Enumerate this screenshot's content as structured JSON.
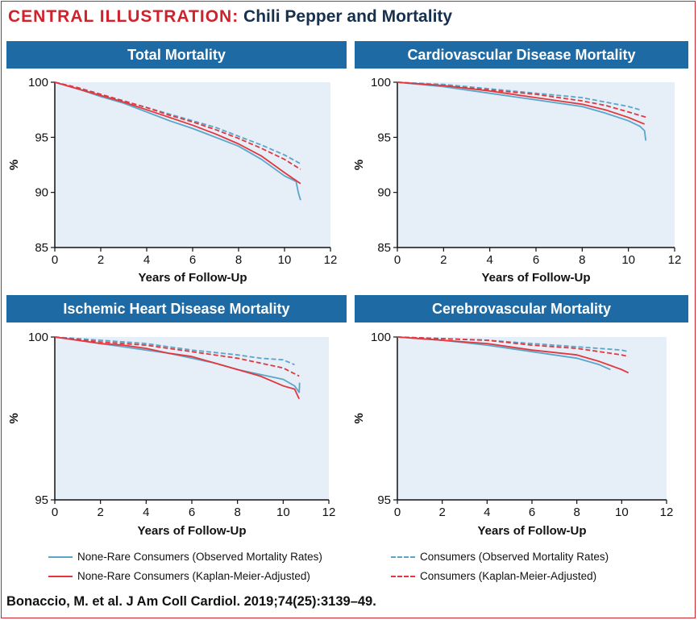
{
  "header": {
    "lead": "CENTRAL ILLUSTRATION:",
    "rest": "Chili Pepper and Mortality"
  },
  "colors": {
    "blue": "#5aa6c8",
    "red": "#e3373d",
    "band": "#1d6aa5",
    "plot_bg": "#e6eef8",
    "accent": "#d0222b"
  },
  "chart_data": [
    {
      "type": "line",
      "title": "Total Mortality",
      "xlabel": "Years of Follow-Up",
      "ylabel": "%",
      "xlim": [
        0,
        12
      ],
      "ylim": [
        85,
        100
      ],
      "xticks": [
        0,
        2,
        4,
        6,
        8,
        10,
        12
      ],
      "yticks": [
        85,
        90,
        95,
        100
      ],
      "ytick_labels": [
        "85",
        "90",
        "95",
        "100"
      ],
      "xtick_labels": [
        "0",
        "2",
        "4",
        "6",
        "8",
        "10",
        "12"
      ],
      "series": [
        {
          "name": "None-Rare Consumers (Observed Mortality Rates)",
          "style": "blue-solid",
          "x": [
            0,
            1,
            2,
            3,
            4,
            5,
            6,
            7,
            8,
            9,
            10,
            10.5,
            10.6,
            10.7
          ],
          "y": [
            100,
            99.4,
            98.7,
            98.1,
            97.3,
            96.5,
            95.8,
            95.0,
            94.2,
            93.0,
            91.5,
            91.0,
            90.0,
            89.3
          ]
        },
        {
          "name": "None-Rare Consumers (Kaplan-Meier-Adjusted)",
          "style": "red-solid",
          "x": [
            0,
            1,
            2,
            3,
            4,
            5,
            6,
            7,
            8,
            9,
            10,
            10.7
          ],
          "y": [
            100,
            99.4,
            98.8,
            98.2,
            97.5,
            96.8,
            96.1,
            95.3,
            94.4,
            93.3,
            91.8,
            90.8
          ]
        },
        {
          "name": "Consumers (Observed Mortality Rates)",
          "style": "blue-dashed",
          "x": [
            0,
            1,
            2,
            3,
            4,
            5,
            6,
            7,
            8,
            9,
            10,
            10.7
          ],
          "y": [
            100,
            99.5,
            98.9,
            98.3,
            97.7,
            97.1,
            96.5,
            95.9,
            95.1,
            94.3,
            93.4,
            92.6
          ]
        },
        {
          "name": "Consumers (Kaplan-Meier-Adjusted)",
          "style": "red-dashed",
          "x": [
            0,
            1,
            2,
            3,
            4,
            5,
            6,
            7,
            8,
            9,
            10,
            10.7
          ],
          "y": [
            100,
            99.5,
            98.9,
            98.3,
            97.7,
            97.0,
            96.4,
            95.7,
            94.9,
            94.0,
            93.0,
            92.1
          ]
        }
      ]
    },
    {
      "type": "line",
      "title": "Cardiovascular Disease Mortality",
      "xlabel": "Years of Follow-Up",
      "ylabel": "%",
      "xlim": [
        0,
        12
      ],
      "ylim": [
        85,
        100
      ],
      "xticks": [
        0,
        2,
        4,
        6,
        8,
        10,
        12
      ],
      "yticks": [
        85,
        90,
        95,
        100
      ],
      "ytick_labels": [
        "85",
        "90",
        "95",
        "100"
      ],
      "xtick_labels": [
        "0",
        "2",
        "4",
        "6",
        "8",
        "10",
        "12"
      ],
      "series": [
        {
          "name": "None-Rare Consumers (Observed Mortality Rates)",
          "style": "blue-solid",
          "x": [
            0,
            2,
            4,
            6,
            8,
            9,
            10,
            10.5,
            10.7,
            10.75
          ],
          "y": [
            100,
            99.6,
            99.0,
            98.4,
            97.8,
            97.2,
            96.5,
            96.0,
            95.6,
            94.7
          ]
        },
        {
          "name": "None-Rare Consumers (Kaplan-Meier-Adjusted)",
          "style": "red-solid",
          "x": [
            0,
            2,
            4,
            6,
            8,
            9,
            10,
            10.7
          ],
          "y": [
            100,
            99.7,
            99.2,
            98.6,
            98.0,
            97.5,
            96.8,
            96.2
          ]
        },
        {
          "name": "Consumers (Observed Mortality Rates)",
          "style": "blue-dashed",
          "x": [
            0,
            2,
            4,
            6,
            8,
            9,
            10,
            10.5
          ],
          "y": [
            100,
            99.8,
            99.4,
            99.0,
            98.6,
            98.2,
            97.8,
            97.5
          ]
        },
        {
          "name": "Consumers (Kaplan-Meier-Adjusted)",
          "style": "red-dashed",
          "x": [
            0,
            2,
            4,
            6,
            8,
            9,
            10,
            10.8
          ],
          "y": [
            100,
            99.7,
            99.3,
            98.9,
            98.3,
            97.9,
            97.3,
            96.8
          ]
        }
      ]
    },
    {
      "type": "line",
      "title": "Ischemic Heart Disease Mortality",
      "xlabel": "Years of Follow-Up",
      "ylabel": "%",
      "xlim": [
        0,
        12
      ],
      "ylim": [
        95,
        100
      ],
      "xticks": [
        0,
        2,
        4,
        6,
        8,
        10,
        12
      ],
      "yticks": [
        95,
        100
      ],
      "ytick_labels": [
        "95",
        "100"
      ],
      "xtick_labels": [
        "0",
        "2",
        "4",
        "6",
        "8",
        "10",
        "12"
      ],
      "series": [
        {
          "name": "None-Rare Consumers (Observed Mortality Rates)",
          "style": "blue-solid",
          "x": [
            0,
            1,
            2,
            3,
            4,
            5,
            6,
            7,
            8,
            9,
            10,
            10.5,
            10.7,
            10.72
          ],
          "y": [
            100,
            99.9,
            99.8,
            99.7,
            99.6,
            99.5,
            99.35,
            99.2,
            99.0,
            98.85,
            98.7,
            98.5,
            98.3,
            98.6
          ]
        },
        {
          "name": "None-Rare Consumers (Kaplan-Meier-Adjusted)",
          "style": "red-solid",
          "x": [
            0,
            1,
            2,
            3,
            4,
            5,
            6,
            7,
            8,
            9,
            10,
            10.5,
            10.7
          ],
          "y": [
            100,
            99.9,
            99.8,
            99.75,
            99.65,
            99.5,
            99.4,
            99.2,
            99.0,
            98.8,
            98.5,
            98.4,
            98.1
          ]
        },
        {
          "name": "Consumers (Observed Mortality Rates)",
          "style": "blue-dashed",
          "x": [
            0,
            2,
            4,
            6,
            8,
            9,
            10,
            10.5
          ],
          "y": [
            100,
            99.9,
            99.8,
            99.6,
            99.45,
            99.35,
            99.3,
            99.15
          ]
        },
        {
          "name": "Consumers (Kaplan-Meier-Adjusted)",
          "style": "red-dashed",
          "x": [
            0,
            2,
            4,
            6,
            8,
            9,
            10,
            10.7
          ],
          "y": [
            100,
            99.85,
            99.75,
            99.55,
            99.35,
            99.2,
            99.05,
            98.8
          ]
        }
      ]
    },
    {
      "type": "line",
      "title": "Cerebrovascular Mortality",
      "xlabel": "Years of Follow-Up",
      "ylabel": "%",
      "xlim": [
        0,
        12
      ],
      "ylim": [
        95,
        100
      ],
      "xticks": [
        0,
        2,
        4,
        6,
        8,
        10,
        12
      ],
      "yticks": [
        95,
        100
      ],
      "ytick_labels": [
        "95",
        "100"
      ],
      "xtick_labels": [
        "0",
        "2",
        "4",
        "6",
        "8",
        "10",
        "12"
      ],
      "series": [
        {
          "name": "None-Rare Consumers (Observed Mortality Rates)",
          "style": "blue-solid",
          "x": [
            0,
            2,
            4,
            6,
            8,
            9,
            9.5
          ],
          "y": [
            100,
            99.9,
            99.75,
            99.55,
            99.35,
            99.15,
            99.0
          ]
        },
        {
          "name": "None-Rare Consumers (Kaplan-Meier-Adjusted)",
          "style": "red-solid",
          "x": [
            0,
            2,
            4,
            6,
            8,
            9,
            10,
            10.3
          ],
          "y": [
            100,
            99.9,
            99.8,
            99.6,
            99.45,
            99.25,
            99.0,
            98.9
          ]
        },
        {
          "name": "Consumers (Observed Mortality Rates)",
          "style": "blue-dashed",
          "x": [
            0,
            2,
            4,
            6,
            8,
            10,
            10.3
          ],
          "y": [
            100,
            99.95,
            99.9,
            99.8,
            99.7,
            99.6,
            99.55
          ]
        },
        {
          "name": "Consumers (Kaplan-Meier-Adjusted)",
          "style": "red-dashed",
          "x": [
            0,
            2,
            4,
            6,
            8,
            10,
            10.3
          ],
          "y": [
            100,
            99.95,
            99.9,
            99.75,
            99.65,
            99.45,
            99.4
          ]
        }
      ]
    }
  ],
  "legend": [
    {
      "label": "None-Rare Consumers (Observed Mortality Rates)",
      "style": "blue-solid"
    },
    {
      "label": "Consumers (Observed Mortality Rates)",
      "style": "blue-dashed"
    },
    {
      "label": "None-Rare Consumers (Kaplan-Meier-Adjusted)",
      "style": "red-solid"
    },
    {
      "label": "Consumers (Kaplan-Meier-Adjusted)",
      "style": "red-dashed"
    }
  ],
  "citation": "Bonaccio, M. et al. J Am Coll Cardiol. 2019;74(25):3139–49."
}
